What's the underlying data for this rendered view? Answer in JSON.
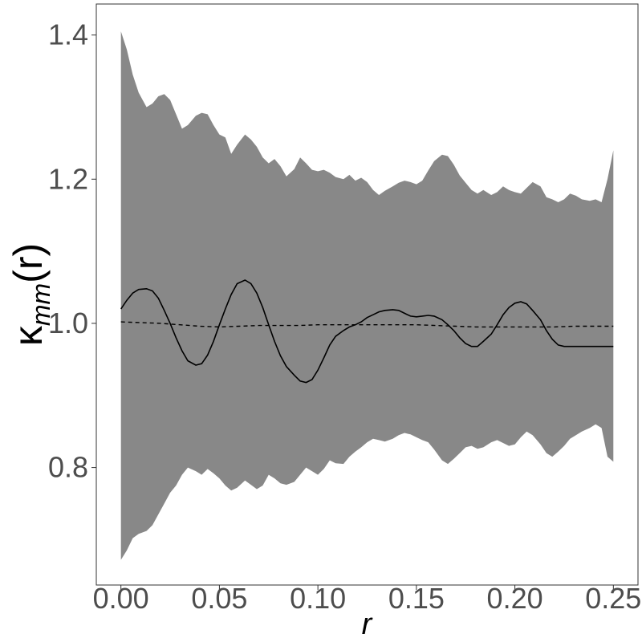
{
  "chart_data": {
    "type": "line",
    "xlabel": "r",
    "ylabel": {
      "base": "κ",
      "subscript": "mm",
      "suffix": "(r)"
    },
    "xlim": [
      -0.0125,
      0.2625
    ],
    "ylim": [
      0.637,
      1.443
    ],
    "xticks": [
      0.0,
      0.05,
      0.1,
      0.15,
      0.2,
      0.25
    ],
    "xtick_labels": [
      "0.00",
      "0.05",
      "0.10",
      "0.15",
      "0.20",
      "0.25"
    ],
    "yticks": [
      0.8,
      1.0,
      1.2,
      1.4
    ],
    "ytick_labels": [
      "0.8",
      "1.0",
      "1.2",
      "1.4"
    ],
    "grid": false,
    "band_color": "#888888",
    "envelope": {
      "x": [
        0.0,
        0.003,
        0.006,
        0.009,
        0.013,
        0.016,
        0.019,
        0.022,
        0.025,
        0.028,
        0.031,
        0.034,
        0.038,
        0.041,
        0.044,
        0.047,
        0.05,
        0.053,
        0.056,
        0.059,
        0.063,
        0.066,
        0.069,
        0.072,
        0.075,
        0.078,
        0.081,
        0.084,
        0.088,
        0.091,
        0.094,
        0.097,
        0.1,
        0.103,
        0.106,
        0.109,
        0.113,
        0.116,
        0.119,
        0.122,
        0.125,
        0.128,
        0.131,
        0.134,
        0.138,
        0.141,
        0.144,
        0.147,
        0.15,
        0.153,
        0.156,
        0.159,
        0.163,
        0.166,
        0.169,
        0.172,
        0.175,
        0.178,
        0.181,
        0.184,
        0.188,
        0.191,
        0.194,
        0.197,
        0.2,
        0.203,
        0.206,
        0.209,
        0.213,
        0.216,
        0.219,
        0.222,
        0.225,
        0.228,
        0.231,
        0.234,
        0.238,
        0.241,
        0.244,
        0.247,
        0.25
      ],
      "upper": [
        1.405,
        1.38,
        1.345,
        1.32,
        1.3,
        1.305,
        1.315,
        1.318,
        1.31,
        1.29,
        1.27,
        1.275,
        1.288,
        1.292,
        1.29,
        1.275,
        1.262,
        1.258,
        1.235,
        1.248,
        1.262,
        1.255,
        1.245,
        1.23,
        1.222,
        1.228,
        1.218,
        1.204,
        1.214,
        1.23,
        1.222,
        1.213,
        1.211,
        1.213,
        1.209,
        1.203,
        1.2,
        1.206,
        1.198,
        1.202,
        1.196,
        1.185,
        1.178,
        1.184,
        1.19,
        1.195,
        1.198,
        1.196,
        1.193,
        1.198,
        1.212,
        1.225,
        1.234,
        1.232,
        1.22,
        1.205,
        1.195,
        1.185,
        1.18,
        1.185,
        1.178,
        1.182,
        1.19,
        1.185,
        1.182,
        1.18,
        1.188,
        1.196,
        1.19,
        1.175,
        1.172,
        1.168,
        1.172,
        1.18,
        1.177,
        1.172,
        1.17,
        1.172,
        1.168,
        1.2,
        1.24
      ],
      "lower": [
        0.672,
        0.685,
        0.702,
        0.708,
        0.712,
        0.72,
        0.735,
        0.75,
        0.765,
        0.775,
        0.79,
        0.8,
        0.795,
        0.79,
        0.798,
        0.792,
        0.785,
        0.775,
        0.768,
        0.772,
        0.782,
        0.776,
        0.77,
        0.775,
        0.79,
        0.785,
        0.778,
        0.776,
        0.78,
        0.79,
        0.8,
        0.795,
        0.79,
        0.798,
        0.81,
        0.806,
        0.805,
        0.815,
        0.822,
        0.828,
        0.835,
        0.84,
        0.838,
        0.836,
        0.84,
        0.845,
        0.848,
        0.846,
        0.842,
        0.838,
        0.835,
        0.825,
        0.81,
        0.805,
        0.812,
        0.82,
        0.828,
        0.83,
        0.826,
        0.828,
        0.835,
        0.838,
        0.834,
        0.83,
        0.832,
        0.842,
        0.85,
        0.845,
        0.832,
        0.82,
        0.815,
        0.822,
        0.83,
        0.84,
        0.845,
        0.85,
        0.855,
        0.86,
        0.855,
        0.815,
        0.808
      ]
    },
    "series": [
      {
        "style": "solid",
        "color": "#000000",
        "x": [
          0.0,
          0.003,
          0.006,
          0.009,
          0.013,
          0.016,
          0.019,
          0.022,
          0.025,
          0.028,
          0.031,
          0.034,
          0.038,
          0.041,
          0.044,
          0.047,
          0.05,
          0.053,
          0.056,
          0.059,
          0.063,
          0.066,
          0.069,
          0.072,
          0.075,
          0.078,
          0.081,
          0.084,
          0.088,
          0.091,
          0.094,
          0.097,
          0.1,
          0.103,
          0.106,
          0.109,
          0.113,
          0.116,
          0.119,
          0.122,
          0.125,
          0.128,
          0.131,
          0.134,
          0.138,
          0.141,
          0.144,
          0.147,
          0.15,
          0.153,
          0.156,
          0.159,
          0.163,
          0.166,
          0.169,
          0.172,
          0.175,
          0.178,
          0.181,
          0.184,
          0.188,
          0.191,
          0.194,
          0.197,
          0.2,
          0.203,
          0.206,
          0.209,
          0.213,
          0.216,
          0.219,
          0.222,
          0.225,
          0.228,
          0.231,
          0.234,
          0.238,
          0.241,
          0.244,
          0.247,
          0.25
        ],
        "y": [
          1.02,
          1.032,
          1.042,
          1.047,
          1.048,
          1.045,
          1.035,
          1.018,
          1.0,
          0.98,
          0.962,
          0.948,
          0.942,
          0.944,
          0.956,
          0.975,
          0.998,
          1.02,
          1.04,
          1.055,
          1.06,
          1.055,
          1.042,
          1.022,
          0.998,
          0.975,
          0.955,
          0.94,
          0.928,
          0.92,
          0.918,
          0.922,
          0.935,
          0.952,
          0.97,
          0.982,
          0.99,
          0.995,
          0.998,
          1.002,
          1.008,
          1.012,
          1.016,
          1.018,
          1.019,
          1.018,
          1.014,
          1.01,
          1.009,
          1.01,
          1.011,
          1.01,
          1.005,
          0.998,
          0.99,
          0.98,
          0.972,
          0.968,
          0.968,
          0.975,
          0.985,
          0.998,
          1.012,
          1.022,
          1.028,
          1.03,
          1.027,
          1.018,
          1.005,
          0.99,
          0.978,
          0.97,
          0.968,
          0.968,
          0.968,
          0.968,
          0.968,
          0.968,
          0.968,
          0.968,
          0.968
        ]
      },
      {
        "style": "dashed",
        "color": "#000000",
        "x": [
          0.0,
          0.01,
          0.02,
          0.03,
          0.04,
          0.05,
          0.06,
          0.07,
          0.08,
          0.09,
          0.1,
          0.11,
          0.12,
          0.13,
          0.14,
          0.15,
          0.16,
          0.17,
          0.18,
          0.19,
          0.2,
          0.21,
          0.22,
          0.23,
          0.24,
          0.25
        ],
        "y": [
          1.002,
          1.001,
          1.0,
          0.998,
          0.996,
          0.995,
          0.996,
          0.997,
          0.997,
          0.997,
          0.998,
          0.998,
          0.998,
          0.998,
          0.998,
          0.998,
          0.997,
          0.996,
          0.995,
          0.995,
          0.995,
          0.995,
          0.995,
          0.996,
          0.996,
          0.996
        ]
      }
    ]
  }
}
